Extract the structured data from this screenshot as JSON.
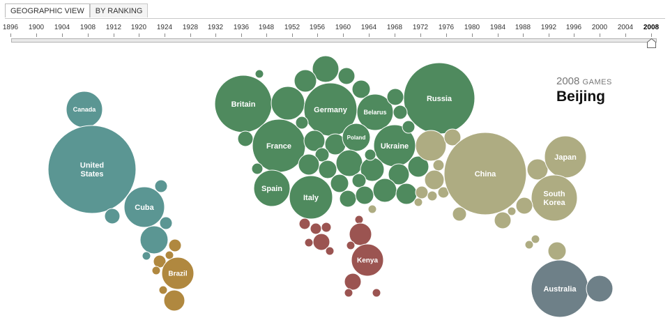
{
  "tabs": [
    {
      "label": "GEOGRAPHIC VIEW",
      "active": true
    },
    {
      "label": "BY RANKING",
      "active": false
    }
  ],
  "timeline": {
    "years": [
      "1896",
      "1900",
      "1904",
      "1908",
      "1912",
      "1920",
      "1924",
      "1928",
      "1932",
      "1936",
      "1948",
      "1952",
      "1956",
      "1960",
      "1964",
      "1968",
      "1972",
      "1976",
      "1980",
      "1984",
      "1988",
      "1992",
      "1996",
      "2000",
      "2004",
      "2008"
    ],
    "selected": "2008"
  },
  "games": {
    "year": "2008",
    "suffix": "GAMES",
    "city": "Beijing"
  },
  "colors": {
    "americas": "#5b9693",
    "latin": "#b0883f",
    "europe": "#4f8a5e",
    "africa": "#9b5451",
    "asia": "#aeac82",
    "oceania": "#6e8088"
  },
  "bubble_labels": [
    "Canada",
    "United States",
    "Cuba",
    "Brazil",
    "Britain",
    "Germany",
    "Belarus",
    "Russia",
    "France",
    "Poland",
    "Ukraine",
    "Spain",
    "Italy",
    "China",
    "Japan",
    "South Korea",
    "Kenya",
    "Australia"
  ]
}
